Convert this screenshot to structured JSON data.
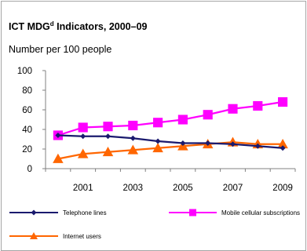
{
  "title_main": "ICT MDG",
  "title_sup": "d",
  "title_rest": " Indicators, 2000–09",
  "subtitle": "Number per 100 people",
  "chart_data": {
    "type": "line",
    "x": [
      2000,
      2001,
      2002,
      2003,
      2004,
      2005,
      2006,
      2007,
      2008,
      2009
    ],
    "x_tick_labels": [
      "2001",
      "2003",
      "2005",
      "2007",
      "2009"
    ],
    "y_tick_labels": [
      "0",
      "20",
      "40",
      "60",
      "80",
      "100"
    ],
    "ylim": [
      0,
      100
    ],
    "grid": false,
    "legend_position": "bottom",
    "series": [
      {
        "name": "Telephone lines",
        "color": "#1a1a6e",
        "marker": "diamond",
        "values": [
          34,
          33,
          33,
          31,
          28,
          26,
          26,
          25,
          23,
          21
        ]
      },
      {
        "name": "Mobile cellular subscriptions",
        "color": "#ff00ff",
        "marker": "square",
        "values": [
          34,
          42,
          43,
          44,
          47,
          50,
          55,
          61,
          64,
          68
        ]
      },
      {
        "name": "Internet users",
        "color": "#ff6600",
        "marker": "triangle",
        "values": [
          10,
          15,
          17,
          19,
          21,
          23,
          25,
          27,
          25,
          25
        ]
      }
    ]
  }
}
